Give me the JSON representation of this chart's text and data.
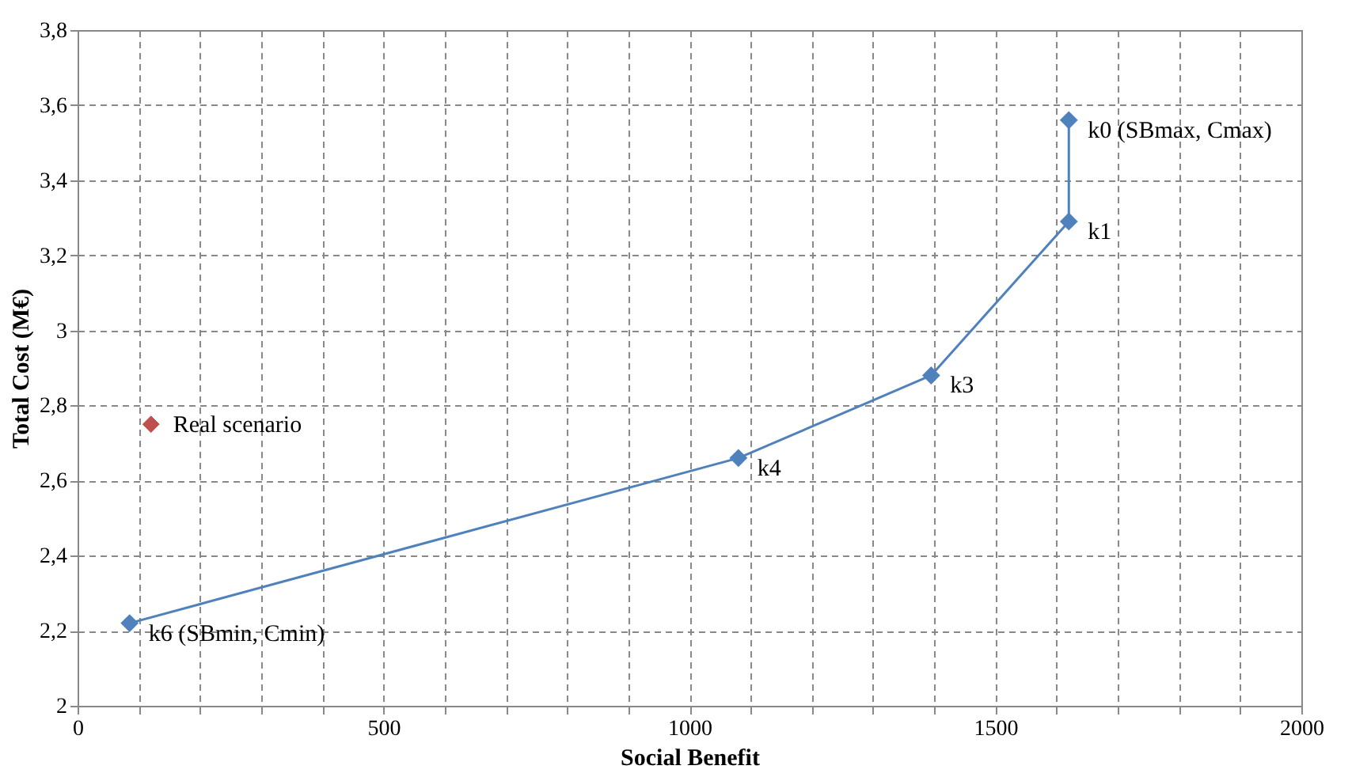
{
  "chart_data": {
    "type": "line",
    "xlabel": "Social Benefit",
    "ylabel": "Total Cost (M€)",
    "xlim": [
      0,
      2000
    ],
    "ylim": [
      2,
      3.8
    ],
    "xticks": [
      0,
      {
        "value": 100,
        "label": null
      },
      {
        "value": 200,
        "label": null
      },
      {
        "value": 300,
        "label": null
      },
      {
        "value": 400,
        "label": null
      },
      500,
      {
        "value": 600,
        "label": null
      },
      {
        "value": 700,
        "label": null
      },
      {
        "value": 800,
        "label": null
      },
      {
        "value": 900,
        "label": null
      },
      1000,
      {
        "value": 1100,
        "label": null
      },
      {
        "value": 1200,
        "label": null
      },
      {
        "value": 1300,
        "label": null
      },
      {
        "value": 1400,
        "label": null
      },
      1500,
      {
        "value": 1600,
        "label": null
      },
      {
        "value": 1700,
        "label": null
      },
      {
        "value": 1800,
        "label": null
      },
      {
        "value": 1900,
        "label": null
      },
      2000
    ],
    "yticks": [
      2,
      {
        "value": 2.2,
        "label": "2,2"
      },
      {
        "value": 2.4,
        "label": "2,4"
      },
      {
        "value": 2.6,
        "label": "2,6"
      },
      {
        "value": 2.8,
        "label": "2,8"
      },
      3,
      {
        "value": 3.2,
        "label": "3,2"
      },
      {
        "value": 3.4,
        "label": "3,4"
      },
      {
        "value": 3.6,
        "label": "3,6"
      },
      {
        "value": 3.8,
        "label": "3,8"
      }
    ],
    "grid": true,
    "marker": "diamond",
    "line_style": "solid",
    "series": [
      {
        "color": "#4f81bd",
        "x": [
          1620,
          1620,
          1395,
          1080,
          85
        ],
        "values": [
          3.56,
          3.29,
          2.88,
          2.66,
          2.22
        ]
      },
      {
        "type": "scatter",
        "name": "Real scenario",
        "color": "#c0504d",
        "x": [
          120
        ],
        "values": [
          2.75
        ]
      }
    ],
    "annotations": [
      {
        "text": "k0 (SBmax, Cmax)",
        "x": 1620,
        "y": 3.56
      },
      {
        "text": "k1",
        "x": 1620,
        "y": 3.29
      },
      {
        "text": "k3",
        "x": 1395,
        "y": 2.88
      },
      {
        "text": "k4",
        "x": 1080,
        "y": 2.66
      },
      {
        "text": "k6 (SBmin, Cmin)",
        "x": 85,
        "y": 2.22
      }
    ]
  }
}
